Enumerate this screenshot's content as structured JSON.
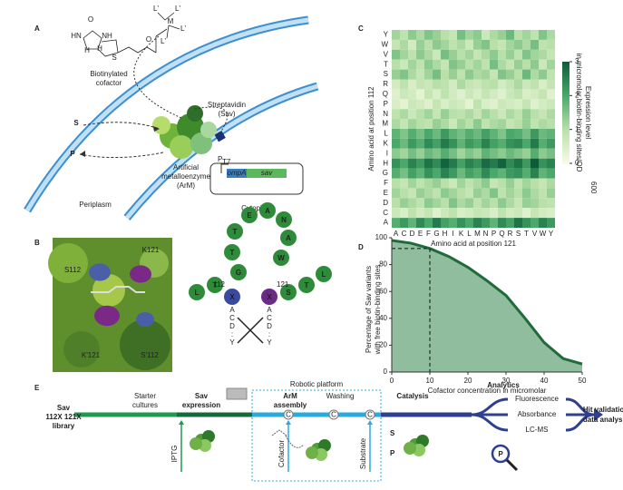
{
  "panel_labels": [
    "A",
    "B",
    "C",
    "D",
    "E"
  ],
  "panel_a": {
    "cofactor": [
      "Biotinylated",
      "cofactor"
    ],
    "atoms": [
      "O",
      "HN",
      "NH",
      "H",
      "H",
      "S",
      "O",
      "M",
      "L'",
      "L'",
      "L'",
      "L'"
    ],
    "sav": [
      "Streptavidin",
      "(Sav)"
    ],
    "arm": [
      "Artificial",
      "metalloenzyme",
      "(ArM)"
    ],
    "substrate": "S",
    "product": "P",
    "periplasm": "Periplasm",
    "cytoplasm": "Cytoplasm",
    "promoter": "P",
    "promoter_sub": "T7",
    "ompa": "ompA",
    "sav_gene": "sav"
  },
  "panel_b": {
    "residues": [
      "S112",
      "K121",
      "K'121",
      "S'112"
    ],
    "peptide": [
      "L",
      "T",
      "X",
      "G",
      "T",
      "T",
      "E",
      "A",
      "N",
      "A",
      "W",
      "X",
      "S",
      "T",
      "L"
    ],
    "positions": [
      "112",
      "121"
    ],
    "variants": [
      "A",
      "C",
      "D",
      ":",
      "Y"
    ]
  },
  "chart_data": [
    {
      "type": "heatmap",
      "x_label": "Amino acid at position 121",
      "y_label": "Amino acid at position 112",
      "x": [
        "A",
        "C",
        "D",
        "E",
        "F",
        "G",
        "H",
        "I",
        "K",
        "L",
        "M",
        "N",
        "P",
        "Q",
        "R",
        "S",
        "T",
        "V",
        "W",
        "Y"
      ],
      "y": [
        "Y",
        "W",
        "V",
        "T",
        "S",
        "R",
        "Q",
        "P",
        "N",
        "M",
        "L",
        "K",
        "I",
        "H",
        "G",
        "F",
        "E",
        "D",
        "C",
        "A"
      ],
      "colorbar_label": [
        "Expression level",
        "in micromolar biotin-binding sites/OD"
      ],
      "colorbar_label_sub": "600",
      "zlim": [
        0,
        3
      ],
      "zticks": [
        0,
        1,
        2,
        3
      ],
      "colors": [
        "#f8fbe6",
        "#b8e0a8",
        "#4aa86a",
        "#0b5c38"
      ],
      "values": [
        [
          1.2,
          0.9,
          1.4,
          1.1,
          1.5,
          1.3,
          1.0,
          0.8,
          1.6,
          1.2,
          1.4,
          0.7,
          1.1,
          1.3,
          1.7,
          1.0,
          1.2,
          0.9,
          1.5,
          1.1
        ],
        [
          0.8,
          1.1,
          0.6,
          1.3,
          1.0,
          1.4,
          1.2,
          0.9,
          1.1,
          0.7,
          1.3,
          1.5,
          1.0,
          0.8,
          1.2,
          1.4,
          1.1,
          1.6,
          0.9,
          1.0
        ],
        [
          1.5,
          1.2,
          0.9,
          1.4,
          1.1,
          0.7,
          1.6,
          1.3,
          1.0,
          1.2,
          0.8,
          1.1,
          1.4,
          1.0,
          1.3,
          0.9,
          1.5,
          1.2,
          1.1,
          0.8
        ],
        [
          1.0,
          0.7,
          1.2,
          0.9,
          1.4,
          1.1,
          0.8,
          1.5,
          1.3,
          1.0,
          1.2,
          0.9,
          1.6,
          1.1,
          0.8,
          1.3,
          1.0,
          1.4,
          0.7,
          1.2
        ],
        [
          1.3,
          1.5,
          1.1,
          0.8,
          1.2,
          1.6,
          1.0,
          1.3,
          0.9,
          1.4,
          1.1,
          1.2,
          0.8,
          1.5,
          1.3,
          1.0,
          1.7,
          1.1,
          1.4,
          0.9
        ],
        [
          0.6,
          0.9,
          0.5,
          0.8,
          0.7,
          1.0,
          0.9,
          0.6,
          1.1,
          0.8,
          0.7,
          0.9,
          1.0,
          0.6,
          0.8,
          1.1,
          0.7,
          0.9,
          0.5,
          0.8
        ],
        [
          0.4,
          0.7,
          0.6,
          0.3,
          0.8,
          0.5,
          0.9,
          0.6,
          0.4,
          0.7,
          0.5,
          0.8,
          0.6,
          0.4,
          0.7,
          0.9,
          0.5,
          0.6,
          0.8,
          0.4
        ],
        [
          0.5,
          0.3,
          0.7,
          0.6,
          0.4,
          0.8,
          0.5,
          0.7,
          0.6,
          0.3,
          0.9,
          0.5,
          0.4,
          0.7,
          0.6,
          0.5,
          0.8,
          0.4,
          0.6,
          0.7
        ],
        [
          0.9,
          1.1,
          0.7,
          1.0,
          1.2,
          0.8,
          1.3,
          1.0,
          0.9,
          1.1,
          0.8,
          1.2,
          1.0,
          0.7,
          1.1,
          0.9,
          1.3,
          1.0,
          0.8,
          1.1
        ],
        [
          1.1,
          0.8,
          1.2,
          1.0,
          0.9,
          1.3,
          1.1,
          0.7,
          1.2,
          1.0,
          1.4,
          0.9,
          1.1,
          1.2,
          0.8,
          1.0,
          1.3,
          0.9,
          1.1,
          1.0
        ],
        [
          1.8,
          1.5,
          1.9,
          1.6,
          2.0,
          1.7,
          2.2,
          1.8,
          1.6,
          1.9,
          1.7,
          2.1,
          1.8,
          1.5,
          2.0,
          1.9,
          1.6,
          2.2,
          1.7,
          1.8
        ],
        [
          2.0,
          1.7,
          2.2,
          1.9,
          2.4,
          2.1,
          2.6,
          2.3,
          1.8,
          2.2,
          2.0,
          2.5,
          2.1,
          1.9,
          2.3,
          2.4,
          2.0,
          2.6,
          1.9,
          2.2
        ],
        [
          1.4,
          1.2,
          1.6,
          1.3,
          1.7,
          1.5,
          1.9,
          1.6,
          1.2,
          1.5,
          1.3,
          1.8,
          1.6,
          1.4,
          1.7,
          1.5,
          1.3,
          1.9,
          1.4,
          1.6
        ],
        [
          2.3,
          2.0,
          2.5,
          2.2,
          2.7,
          2.4,
          2.9,
          2.6,
          2.1,
          2.5,
          2.3,
          2.8,
          2.6,
          2.9,
          2.4,
          2.7,
          2.2,
          3.0,
          2.3,
          2.5
        ],
        [
          1.9,
          1.6,
          2.1,
          1.8,
          2.3,
          2.0,
          2.5,
          2.2,
          1.7,
          2.1,
          1.9,
          2.4,
          2.0,
          1.8,
          2.2,
          2.3,
          1.9,
          2.5,
          1.8,
          2.0
        ],
        [
          1.0,
          0.8,
          1.2,
          0.9,
          1.1,
          1.3,
          1.0,
          0.7,
          1.2,
          0.9,
          1.1,
          1.4,
          0.8,
          1.0,
          1.3,
          0.9,
          1.2,
          1.0,
          0.8,
          1.1
        ],
        [
          1.2,
          1.0,
          0.8,
          1.3,
          1.1,
          0.9,
          1.4,
          1.2,
          1.0,
          0.8,
          1.3,
          1.1,
          1.5,
          0.9,
          1.2,
          1.0,
          1.4,
          1.1,
          0.9,
          1.3
        ],
        [
          1.0,
          1.3,
          1.1,
          0.9,
          1.4,
          1.2,
          1.0,
          1.5,
          1.1,
          1.3,
          0.9,
          1.2,
          1.0,
          1.4,
          1.1,
          0.8,
          1.3,
          1.2,
          1.0,
          0.9
        ],
        [
          0.7,
          0.5,
          0.9,
          0.6,
          0.8,
          0.4,
          0.7,
          0.9,
          0.5,
          0.6,
          0.8,
          0.7,
          0.5,
          0.9,
          0.6,
          0.7,
          0.4,
          0.8,
          0.6,
          0.5
        ],
        [
          1.9,
          2.2,
          1.8,
          2.4,
          2.0,
          2.6,
          2.1,
          1.9,
          2.3,
          2.0,
          2.5,
          2.2,
          1.8,
          2.4,
          2.1,
          2.7,
          2.3,
          2.0,
          2.5,
          2.2
        ]
      ]
    },
    {
      "type": "area",
      "x_label": "Cofactor concentration in micromolar",
      "y_label": [
        "Percentage of Sav variants",
        "with free biotin-binding sites"
      ],
      "x": [
        0,
        5,
        10,
        15,
        20,
        25,
        30,
        35,
        40,
        45,
        50
      ],
      "values": [
        98,
        96,
        92,
        86,
        78,
        68,
        57,
        40,
        22,
        10,
        6
      ],
      "color": "#1f6b3a",
      "fill": "#8fbd9e",
      "xlim": [
        0,
        50
      ],
      "ylim": [
        0,
        100
      ],
      "xticks": [
        0,
        10,
        20,
        30,
        40,
        50
      ],
      "yticks": [
        0,
        20,
        40,
        60,
        80,
        100
      ],
      "reference": {
        "x": 10,
        "y": 92
      }
    }
  ],
  "panel_e": {
    "library": [
      "Sav",
      "112X 121X",
      "library"
    ],
    "starter": [
      "Starter",
      "cultures"
    ],
    "expression": [
      "Sav",
      "expression"
    ],
    "platform": "Robotic platform",
    "assembly": [
      "ArM",
      "assembly"
    ],
    "washing": "Washing",
    "catalysis": "Catalysis",
    "analytics": "Analytics",
    "methods": [
      "Fluorescence",
      "Absorbance",
      "LC-MS"
    ],
    "hit": [
      "Hit validation",
      "data analysis"
    ],
    "inputs": [
      "IPTG",
      "Cofactor",
      "Substrate"
    ],
    "circle_label": "C",
    "s": "S",
    "p": "P",
    "probe": "P"
  }
}
